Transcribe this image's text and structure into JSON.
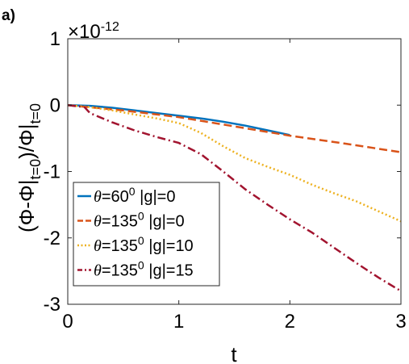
{
  "panel_label": "a)",
  "chart_data": {
    "type": "line",
    "exponent_label": "×10",
    "exponent_power": "-12",
    "xlabel": "t",
    "ylabel_parts": {
      "open": "(Φ-Φ|",
      "sub1": "t=0",
      "mid": ")/Φ|",
      "sub2": "t=0"
    },
    "xlim": [
      0,
      3
    ],
    "ylim": [
      -3,
      1
    ],
    "x_ticks": [
      0,
      1,
      2,
      3
    ],
    "y_ticks": [
      -3,
      -2,
      -1,
      0,
      1
    ],
    "x_tick_labels": [
      "0",
      "1",
      "2",
      "3"
    ],
    "y_tick_labels": [
      "-3",
      "-2",
      "-1",
      "0",
      "1"
    ],
    "grid": false,
    "legend_position": "bottom-left",
    "series": [
      {
        "theta_value": "60",
        "legend_rest": " |g|=0",
        "color": "#0072BD",
        "style": "solid",
        "x": [
          0,
          0.2,
          0.4,
          0.6,
          0.8,
          1.0,
          1.2,
          1.4,
          1.6,
          1.8,
          2.0
        ],
        "y": [
          0,
          -0.01,
          -0.04,
          -0.08,
          -0.12,
          -0.16,
          -0.2,
          -0.25,
          -0.31,
          -0.38,
          -0.45
        ]
      },
      {
        "theta_value": "135",
        "legend_rest": " |g|=0",
        "color": "#D95319",
        "style": "dashed",
        "x": [
          0,
          0.5,
          1.0,
          1.5,
          2.0,
          2.5,
          3.0
        ],
        "y": [
          0,
          -0.08,
          -0.18,
          -0.32,
          -0.46,
          -0.58,
          -0.71
        ]
      },
      {
        "theta_value": "135",
        "legend_rest": " |g|=10",
        "color": "#EDB120",
        "style": "dotted",
        "x": [
          0,
          0.2,
          0.4,
          0.6,
          0.8,
          1.0,
          1.2,
          1.4,
          1.6,
          1.8,
          2.0,
          2.2,
          2.4,
          2.6,
          2.8,
          3.0
        ],
        "y": [
          0,
          -0.03,
          -0.08,
          -0.14,
          -0.2,
          -0.27,
          -0.42,
          -0.62,
          -0.8,
          -0.93,
          -1.05,
          -1.2,
          -1.33,
          -1.45,
          -1.6,
          -1.75
        ]
      },
      {
        "theta_value": "135",
        "legend_rest": " |g|=15",
        "color": "#A2142F",
        "style": "dashdot",
        "x": [
          0,
          0.15,
          0.2,
          0.4,
          0.6,
          0.8,
          1.0,
          1.2,
          1.4,
          1.6,
          1.8,
          2.0,
          2.2,
          2.4,
          2.6,
          2.8,
          3.0
        ],
        "y": [
          0,
          -0.03,
          -0.12,
          -0.26,
          -0.38,
          -0.48,
          -0.57,
          -0.74,
          -1.0,
          -1.27,
          -1.5,
          -1.72,
          -1.92,
          -2.15,
          -2.38,
          -2.6,
          -2.8
        ]
      }
    ]
  }
}
